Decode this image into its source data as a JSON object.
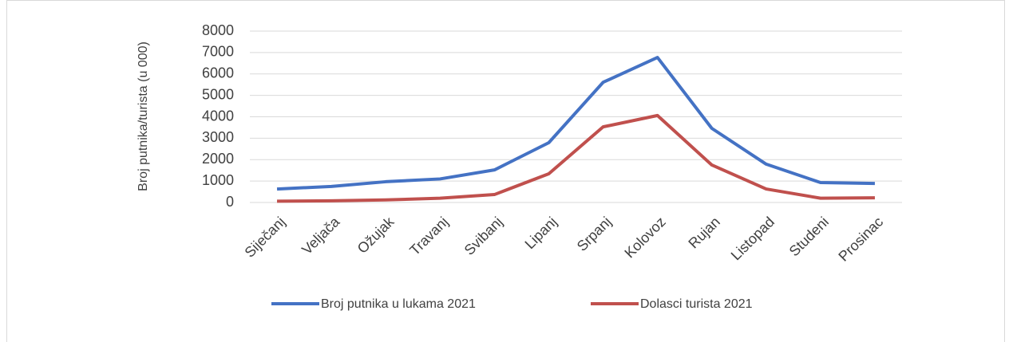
{
  "chart_data": {
    "type": "line",
    "y_label": "Broj putnika/turista (u 000)",
    "categories": [
      "Siječanj",
      "Veljača",
      "Ožujak",
      "Travanj",
      "Svibanj",
      "Lipanj",
      "Srpanj",
      "Kolovoz",
      "Rujan",
      "Listopad",
      "Studeni",
      "Prosinac"
    ],
    "series": [
      {
        "name": "Broj putnika u lukama 2021",
        "color": "#4472c4",
        "values": [
          630,
          750,
          970,
          1100,
          1520,
          2790,
          5610,
          6770,
          3460,
          1790,
          930,
          890
        ]
      },
      {
        "name": "Dolasci turista 2021",
        "color": "#c0504d",
        "values": [
          60,
          80,
          120,
          200,
          370,
          1340,
          3530,
          4060,
          1750,
          630,
          200,
          220
        ]
      }
    ],
    "ylim": [
      0,
      8000
    ],
    "yticks": [
      0,
      1000,
      2000,
      3000,
      4000,
      5000,
      6000,
      7000,
      8000
    ],
    "grid": true,
    "legend": "bottom"
  }
}
